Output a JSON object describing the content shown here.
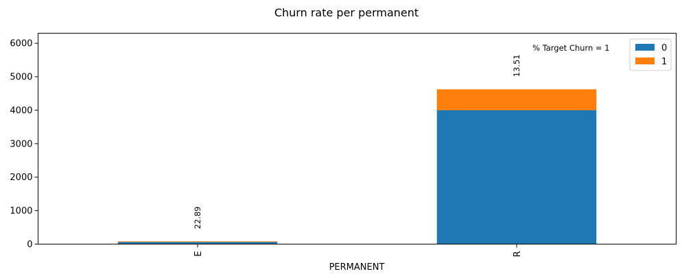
{
  "chart_data": {
    "type": "bar",
    "stacked": true,
    "title": "Churn rate per permanent",
    "xlabel": "PERMANENT",
    "ylabel": "",
    "categories": [
      "E",
      "R"
    ],
    "series": [
      {
        "name": "0",
        "values": [
          64,
          4000
        ],
        "color": "#1f77b4"
      },
      {
        "name": "1",
        "values": [
          19,
          625
        ],
        "color": "#ff7f0e"
      }
    ],
    "ylim": [
      0,
      6300
    ],
    "yticks": [
      0,
      1000,
      2000,
      3000,
      4000,
      5000,
      6000
    ],
    "bar_labels": [
      "22.89",
      "13.51"
    ],
    "annotation": "% Target Churn = 1",
    "legend_position": "top-right",
    "grid": false
  }
}
